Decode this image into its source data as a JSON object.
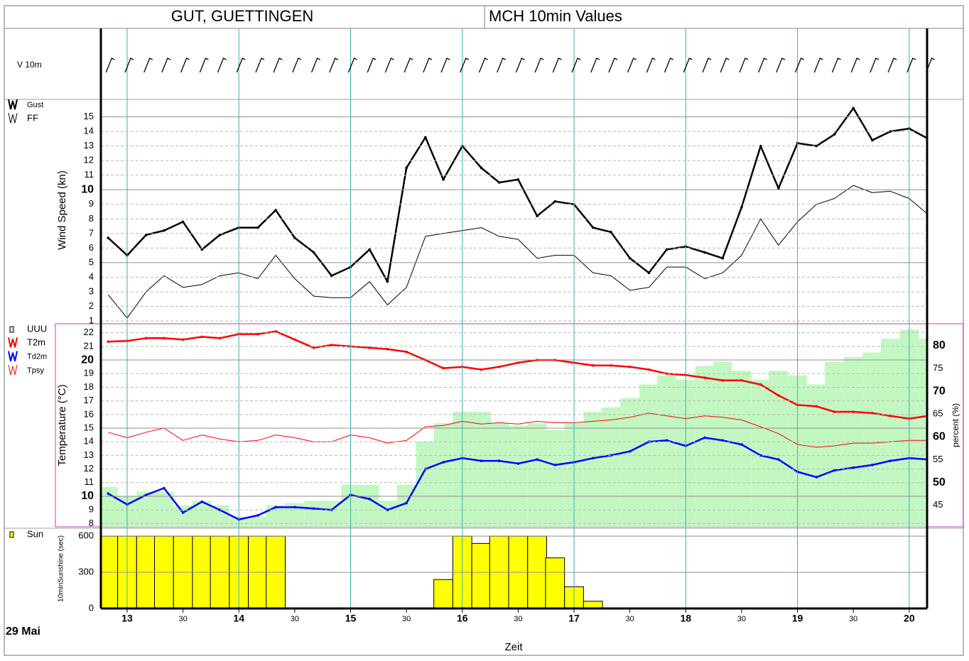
{
  "header": {
    "station": "GUT, GUETTINGEN",
    "product": "MCH 10min Values"
  },
  "time_axis": {
    "label": "Zeit",
    "date": "29 Mai",
    "xlim": [
      12.765,
      20.16
    ],
    "x": [
      12.83,
      13,
      13.17,
      13.33,
      13.5,
      13.67,
      13.83,
      14,
      14.17,
      14.33,
      14.5,
      14.67,
      14.83,
      15,
      15.17,
      15.33,
      15.5,
      15.67,
      15.83,
      16,
      16.17,
      16.33,
      16.5,
      16.67,
      16.83,
      17,
      17.17,
      17.33,
      17.5,
      17.67,
      17.83,
      18,
      18.17,
      18.33,
      18.5,
      18.67,
      18.83,
      19,
      19.17,
      19.33,
      19.5,
      19.67,
      19.83,
      20,
      20.17
    ],
    "xticks": [
      13,
      {
        "value": 13.5,
        "label": "30"
      },
      14,
      {
        "value": 14.5,
        "label": "30"
      },
      15,
      {
        "value": 15.5,
        "label": "30"
      },
      16,
      {
        "value": 16.5,
        "label": "30"
      },
      17,
      {
        "value": 17.5,
        "label": "30"
      },
      18,
      {
        "value": 18.5,
        "label": "30"
      },
      19,
      {
        "value": 19.5,
        "label": "30"
      },
      20
    ]
  },
  "chart_data": [
    {
      "type": "barbs",
      "label": "V 10m"
    },
    {
      "type": "line",
      "ylabel": "Wind Speed (kn)",
      "ylim": [
        1,
        16.2
      ],
      "yticks": [
        1,
        2,
        3,
        4,
        5,
        6,
        7,
        8,
        9,
        10,
        11,
        12,
        13,
        14,
        15
      ],
      "grid": true,
      "grid_major": 5,
      "bold_every": 10,
      "series": [
        {
          "name": "Gust",
          "color": "#000000",
          "linewidth": 2.5,
          "values": [
            6.7,
            5.5,
            6.9,
            7.2,
            7.8,
            5.9,
            6.9,
            7.4,
            7.4,
            8.6,
            6.7,
            5.7,
            4.1,
            4.7,
            5.9,
            3.7,
            11.5,
            13.6,
            10.7,
            13.0,
            11.5,
            10.5,
            10.7,
            8.2,
            9.2,
            9.0,
            7.4,
            7.1,
            5.3,
            4.3,
            5.9,
            6.1,
            5.7,
            5.3,
            8.8,
            13.0,
            10.1,
            13.2,
            13.0,
            13.8,
            15.6,
            13.4,
            14.0,
            14.2,
            13.5
          ]
        },
        {
          "name": "FF",
          "color": "#000000",
          "linewidth": 1,
          "values": [
            2.8,
            1.2,
            3.0,
            4.1,
            3.3,
            3.5,
            4.1,
            4.3,
            3.9,
            5.5,
            3.9,
            2.7,
            2.6,
            2.6,
            3.7,
            2.1,
            3.3,
            6.8,
            7.0,
            7.2,
            7.4,
            6.8,
            6.6,
            5.3,
            5.5,
            5.5,
            4.3,
            4.1,
            3.1,
            3.3,
            4.7,
            4.7,
            3.9,
            4.3,
            5.5,
            8.0,
            6.2,
            7.8,
            9.0,
            9.4,
            10.3,
            9.8,
            9.9,
            9.4,
            8.3
          ]
        }
      ]
    },
    {
      "type": "line",
      "ylabel": "Temperature (°C)",
      "y2label": "percent (%)",
      "ylim": [
        7.76,
        22.66
      ],
      "yticks": [
        8,
        9,
        10,
        11,
        12,
        13,
        14,
        15,
        16,
        17,
        18,
        19,
        20,
        21,
        22
      ],
      "y2lim": [
        40.3,
        84.8
      ],
      "y2ticks": [
        45,
        50,
        55,
        60,
        65,
        70,
        75,
        80
      ],
      "grid": true,
      "grid_major": 5,
      "bold_every": 10,
      "series": [
        {
          "name": "UUU",
          "type": "bar",
          "axis": "y2",
          "color": "#c2f7c2",
          "values": [
            49,
            47,
            48,
            48,
            45,
            46,
            45,
            42.5,
            42.5,
            45,
            45.5,
            46,
            46,
            49.5,
            49.5,
            46,
            49.5,
            59,
            63,
            65.5,
            65.5,
            63,
            62.5,
            63,
            61.5,
            63,
            65.5,
            66.5,
            68.5,
            71.5,
            73.5,
            72.5,
            75.5,
            76.5,
            74.5,
            72.5,
            74.5,
            73.5,
            71.5,
            76.5,
            77.5,
            78.5,
            81.5,
            83.5,
            81.5
          ]
        },
        {
          "name": "T2m",
          "color": "#ff0000",
          "linewidth": 2.5,
          "values": [
            21.35,
            21.4,
            21.6,
            21.6,
            21.5,
            21.7,
            21.6,
            21.9,
            21.9,
            22.1,
            21.5,
            20.9,
            21.1,
            21.0,
            20.9,
            20.8,
            20.6,
            20.0,
            19.4,
            19.5,
            19.3,
            19.5,
            19.8,
            20.0,
            20.0,
            19.8,
            19.6,
            19.6,
            19.5,
            19.3,
            19.0,
            18.9,
            18.7,
            18.5,
            18.5,
            18.2,
            17.4,
            16.7,
            16.6,
            16.2,
            16.2,
            16.1,
            15.9,
            15.7,
            15.9
          ]
        },
        {
          "name": "Td2m",
          "color": "#0000ff",
          "linewidth": 2.5,
          "values": [
            10.2,
            9.4,
            10.1,
            10.6,
            8.8,
            9.6,
            9.0,
            8.3,
            8.6,
            9.2,
            9.2,
            9.1,
            9.0,
            10.1,
            9.8,
            9.0,
            9.5,
            12.0,
            12.5,
            12.8,
            12.6,
            12.6,
            12.4,
            12.7,
            12.3,
            12.5,
            12.8,
            13.0,
            13.3,
            14.0,
            14.1,
            13.7,
            14.3,
            14.1,
            13.8,
            13.0,
            12.7,
            11.8,
            11.4,
            11.9,
            12.1,
            12.3,
            12.6,
            12.8,
            12.7
          ]
        },
        {
          "name": "Tpsy",
          "color": "#ff0000",
          "linewidth": 1,
          "values": [
            14.7,
            14.3,
            14.7,
            15.0,
            14.1,
            14.5,
            14.2,
            14.0,
            14.1,
            14.5,
            14.3,
            14.0,
            14.0,
            14.5,
            14.3,
            13.9,
            14.1,
            15.1,
            15.2,
            15.5,
            15.3,
            15.4,
            15.3,
            15.5,
            15.4,
            15.4,
            15.5,
            15.6,
            15.8,
            16.1,
            15.9,
            15.7,
            15.9,
            15.8,
            15.6,
            15.1,
            14.6,
            13.8,
            13.6,
            13.7,
            13.9,
            13.9,
            14.0,
            14.1,
            14.1
          ]
        }
      ]
    },
    {
      "type": "bar",
      "ylabel": "10minSunshine (sec)",
      "ylim": [
        0,
        660
      ],
      "yticks": [
        0,
        300,
        600
      ],
      "grid": true,
      "grid_major": 300,
      "series": [
        {
          "name": "Sun",
          "type": "bar",
          "color": "#ffff00",
          "values": [
            600,
            600,
            600,
            600,
            600,
            600,
            600,
            600,
            600,
            600,
            0,
            0,
            0,
            0,
            0,
            0,
            0,
            0,
            240,
            600,
            540,
            600,
            600,
            600,
            420,
            180,
            60,
            0,
            0,
            0,
            0,
            0,
            0,
            0,
            0,
            0,
            0,
            0,
            0,
            0,
            0,
            0,
            0,
            0,
            0
          ]
        }
      ]
    }
  ]
}
